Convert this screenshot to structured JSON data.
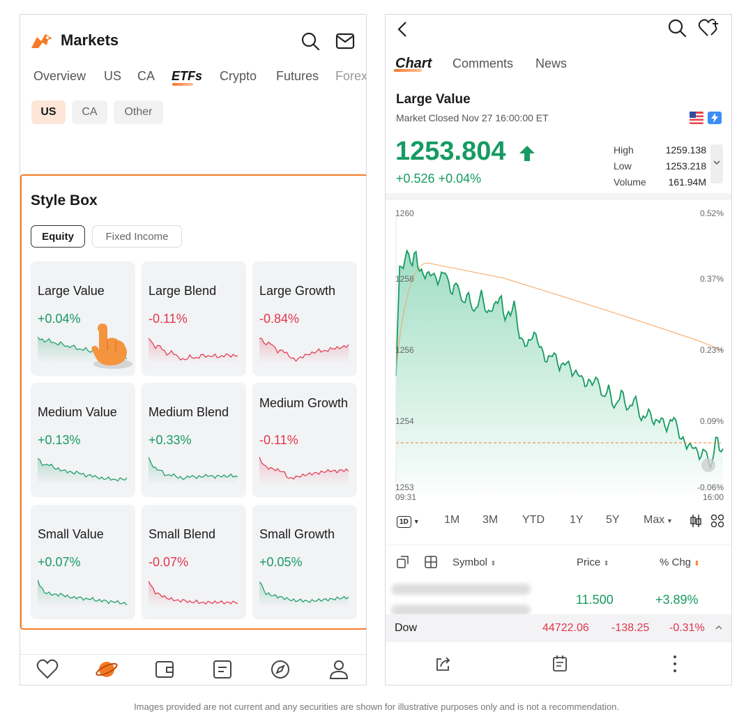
{
  "left": {
    "app_title": "Markets",
    "tabs": [
      "Overview",
      "US",
      "CA",
      "ETFs",
      "Crypto",
      "Futures",
      "Forex"
    ],
    "active_tab": "ETFs",
    "region_chips": [
      "US",
      "CA",
      "Other"
    ],
    "section_title": "Style Box",
    "segment": [
      "Equity",
      "Fixed Income"
    ],
    "tiles": [
      {
        "name": "Large Value",
        "change": "+0.04%",
        "dir": "up"
      },
      {
        "name": "Large Blend",
        "change": "-0.11%",
        "dir": "down"
      },
      {
        "name": "Large Growth",
        "change": "-0.84%",
        "dir": "down"
      },
      {
        "name": "Medium Value",
        "change": "+0.13%",
        "dir": "up"
      },
      {
        "name": "Medium Blend",
        "change": "+0.33%",
        "dir": "up"
      },
      {
        "name": "Medium Growth",
        "change": "-0.11%",
        "dir": "down"
      },
      {
        "name": "Small Value",
        "change": "+0.07%",
        "dir": "up"
      },
      {
        "name": "Small Blend",
        "change": "-0.07%",
        "dir": "down"
      },
      {
        "name": "Small Growth",
        "change": "+0.05%",
        "dir": "up"
      }
    ],
    "bottom_nav_icons": [
      "heart-icon",
      "planet-icon",
      "wallet-icon",
      "notes-icon",
      "compass-icon",
      "person-icon"
    ]
  },
  "right": {
    "tabs": [
      "Chart",
      "Comments",
      "News"
    ],
    "title": "Large Value",
    "status": "Market Closed Nov 27 16:00:00 ET",
    "price": "1253.804",
    "change": "+0.526 +0.04%",
    "stats": {
      "high_label": "High",
      "high": "1259.138",
      "low_label": "Low",
      "low": "1253.218",
      "volume_label": "Volume",
      "volume": "161.94M"
    },
    "chart": {
      "y_left": [
        "1260",
        "1258",
        "1256",
        "1254",
        "1253"
      ],
      "y_right": [
        "0.52%",
        "0.37%",
        "0.23%",
        "0.09%",
        "-0.06%"
      ],
      "x_start": "09:31",
      "x_end": "16:00"
    },
    "periods": [
      "1D",
      "1M",
      "3M",
      "YTD",
      "1Y",
      "5Y",
      "Max"
    ],
    "table": {
      "col_symbol": "Symbol",
      "col_price": "Price",
      "col_chg": "% Chg",
      "row_price": "11.500",
      "row_chg": "+3.89%"
    },
    "index_bar": {
      "name": "Dow",
      "value": "44722.06",
      "change": "-138.25",
      "pct": "-0.31%"
    }
  },
  "disclaimer": "Images provided are not current and any securities are shown for illustrative purposes only and is not a recommendation.",
  "colors": {
    "up": "#169b62",
    "down": "#e0364b",
    "accent": "#f57a25"
  }
}
